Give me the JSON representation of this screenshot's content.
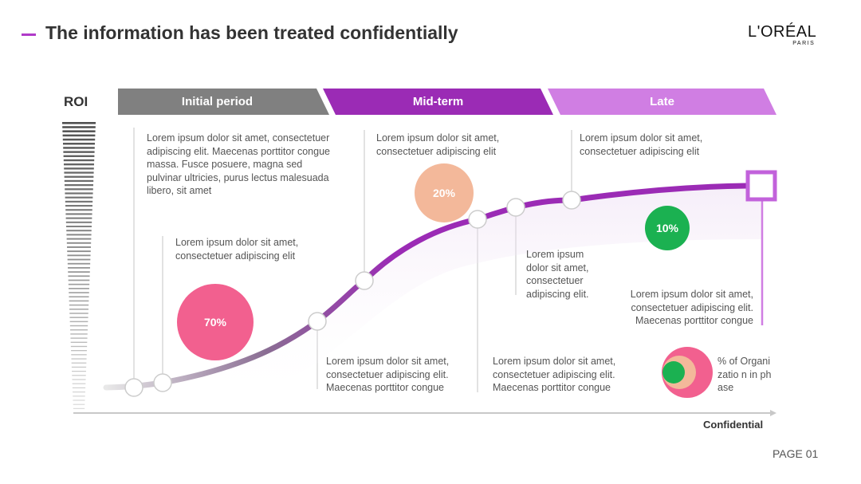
{
  "header": {
    "title": "The information has been treated confidentially",
    "logo_text": "L'ORÉAL",
    "logo_sub": "PARIS"
  },
  "axis": {
    "y_label": "ROI",
    "x_footer": "Confidential"
  },
  "phases": [
    {
      "label": "Initial period",
      "color": "#808080"
    },
    {
      "label": "Mid-term",
      "color": "#9b2bb5"
    },
    {
      "label": "Late",
      "color": "#d07ee3"
    }
  ],
  "labels": {
    "initial_top": "Lorem ipsum dolor sit amet, consectetuer adipiscing elit. Maecenas porttitor congue massa. Fusce posuere, magna sed pulvinar ultricies, purus lectus malesuada libero, sit amet",
    "initial_mid": "Lorem ipsum dolor sit amet, consectetuer adipiscing elit",
    "mid_top": "Lorem ipsum dolor sit amet, consectetuer adipiscing elit",
    "mid_bottom": "Lorem ipsum dolor sit amet, consectetuer adipiscing elit. Maecenas porttitor congue",
    "mid_bottom2": "Lorem ipsum dolor sit amet, consectetuer adipiscing elit. Maecenas porttitor congue",
    "mid_narrow": "Lorem ipsum dolor sit amet, consectetuer adipiscing elit.",
    "late_top": "Lorem ipsum dolor sit amet, consectetuer adipiscing elit",
    "late_right": "Lorem ipsum dolor sit amet, consectetuer adipiscing elit. Maecenas porttitor congue"
  },
  "bubbles": [
    {
      "value": "70%",
      "color": "#f2608f"
    },
    {
      "value": "20%",
      "color": "#f3b89a"
    },
    {
      "value": "10%",
      "color": "#1bb151"
    }
  ],
  "legend": {
    "text": "% of Organizatio n in phase",
    "colors": [
      "#f2608f",
      "#f3b89a",
      "#1bb151"
    ]
  },
  "curve_color": "#9b2bb5",
  "footer": {
    "page": "PAGE 01"
  }
}
